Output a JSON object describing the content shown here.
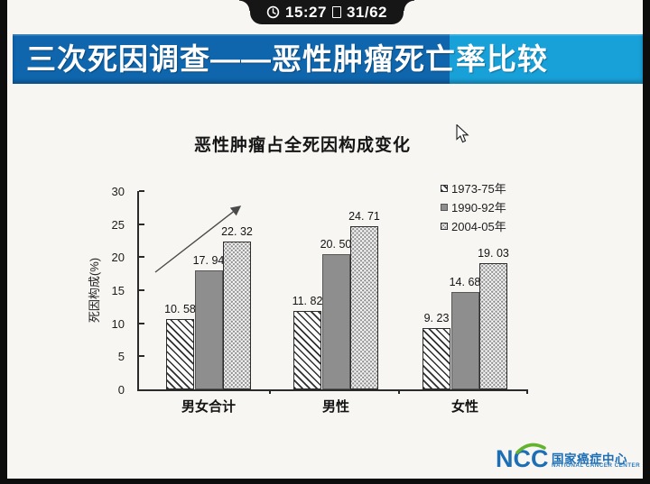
{
  "status_bar": {
    "time": "15:27",
    "page": "31/62",
    "clock_icon": "clock-icon",
    "page_icon": "slide-page-icon"
  },
  "banner": {
    "title": "三次死因调查——恶性肿瘤死亡率比较"
  },
  "chart_data": {
    "type": "bar",
    "title": "恶性肿瘤占全死因构成变化",
    "xlabel": "",
    "ylabel": "死因构成(%)",
    "ylim": [
      0,
      30
    ],
    "yticks": [
      0,
      5,
      10,
      15,
      20,
      25,
      30
    ],
    "grid": false,
    "legend_position": "upper right",
    "categories": [
      "男女合计",
      "男性",
      "女性"
    ],
    "series": [
      {
        "name": "1973-75年",
        "pattern": "diagonal-hatch",
        "values": [
          10.58,
          11.82,
          9.23
        ],
        "labels": [
          "10. 58",
          "11. 82",
          "9. 23"
        ]
      },
      {
        "name": "1990-92年",
        "pattern": "solid-gray",
        "values": [
          17.94,
          20.5,
          14.68
        ],
        "labels": [
          "17. 94",
          "20. 50",
          "14. 68"
        ]
      },
      {
        "name": "2004-05年",
        "pattern": "dotted",
        "values": [
          22.32,
          24.71,
          19.03
        ],
        "labels": [
          "22. 32",
          "24. 71",
          "19. 03"
        ]
      }
    ],
    "annotation": {
      "type": "arrow",
      "meaning": "increasing trend",
      "over_group": "男女合计"
    }
  },
  "logo": {
    "abbr": "NCC",
    "name_cn": "国家癌症中心",
    "name_en": "NATIONAL CANCER CENTER",
    "blue": "#1c6eb5",
    "green": "#64b32c"
  },
  "colors": {
    "banner_dark_blue": "#0f66ad",
    "banner_light_blue": "#18a0d8",
    "bar_gray": "#8e8e8e",
    "tab_black": "#161616"
  }
}
